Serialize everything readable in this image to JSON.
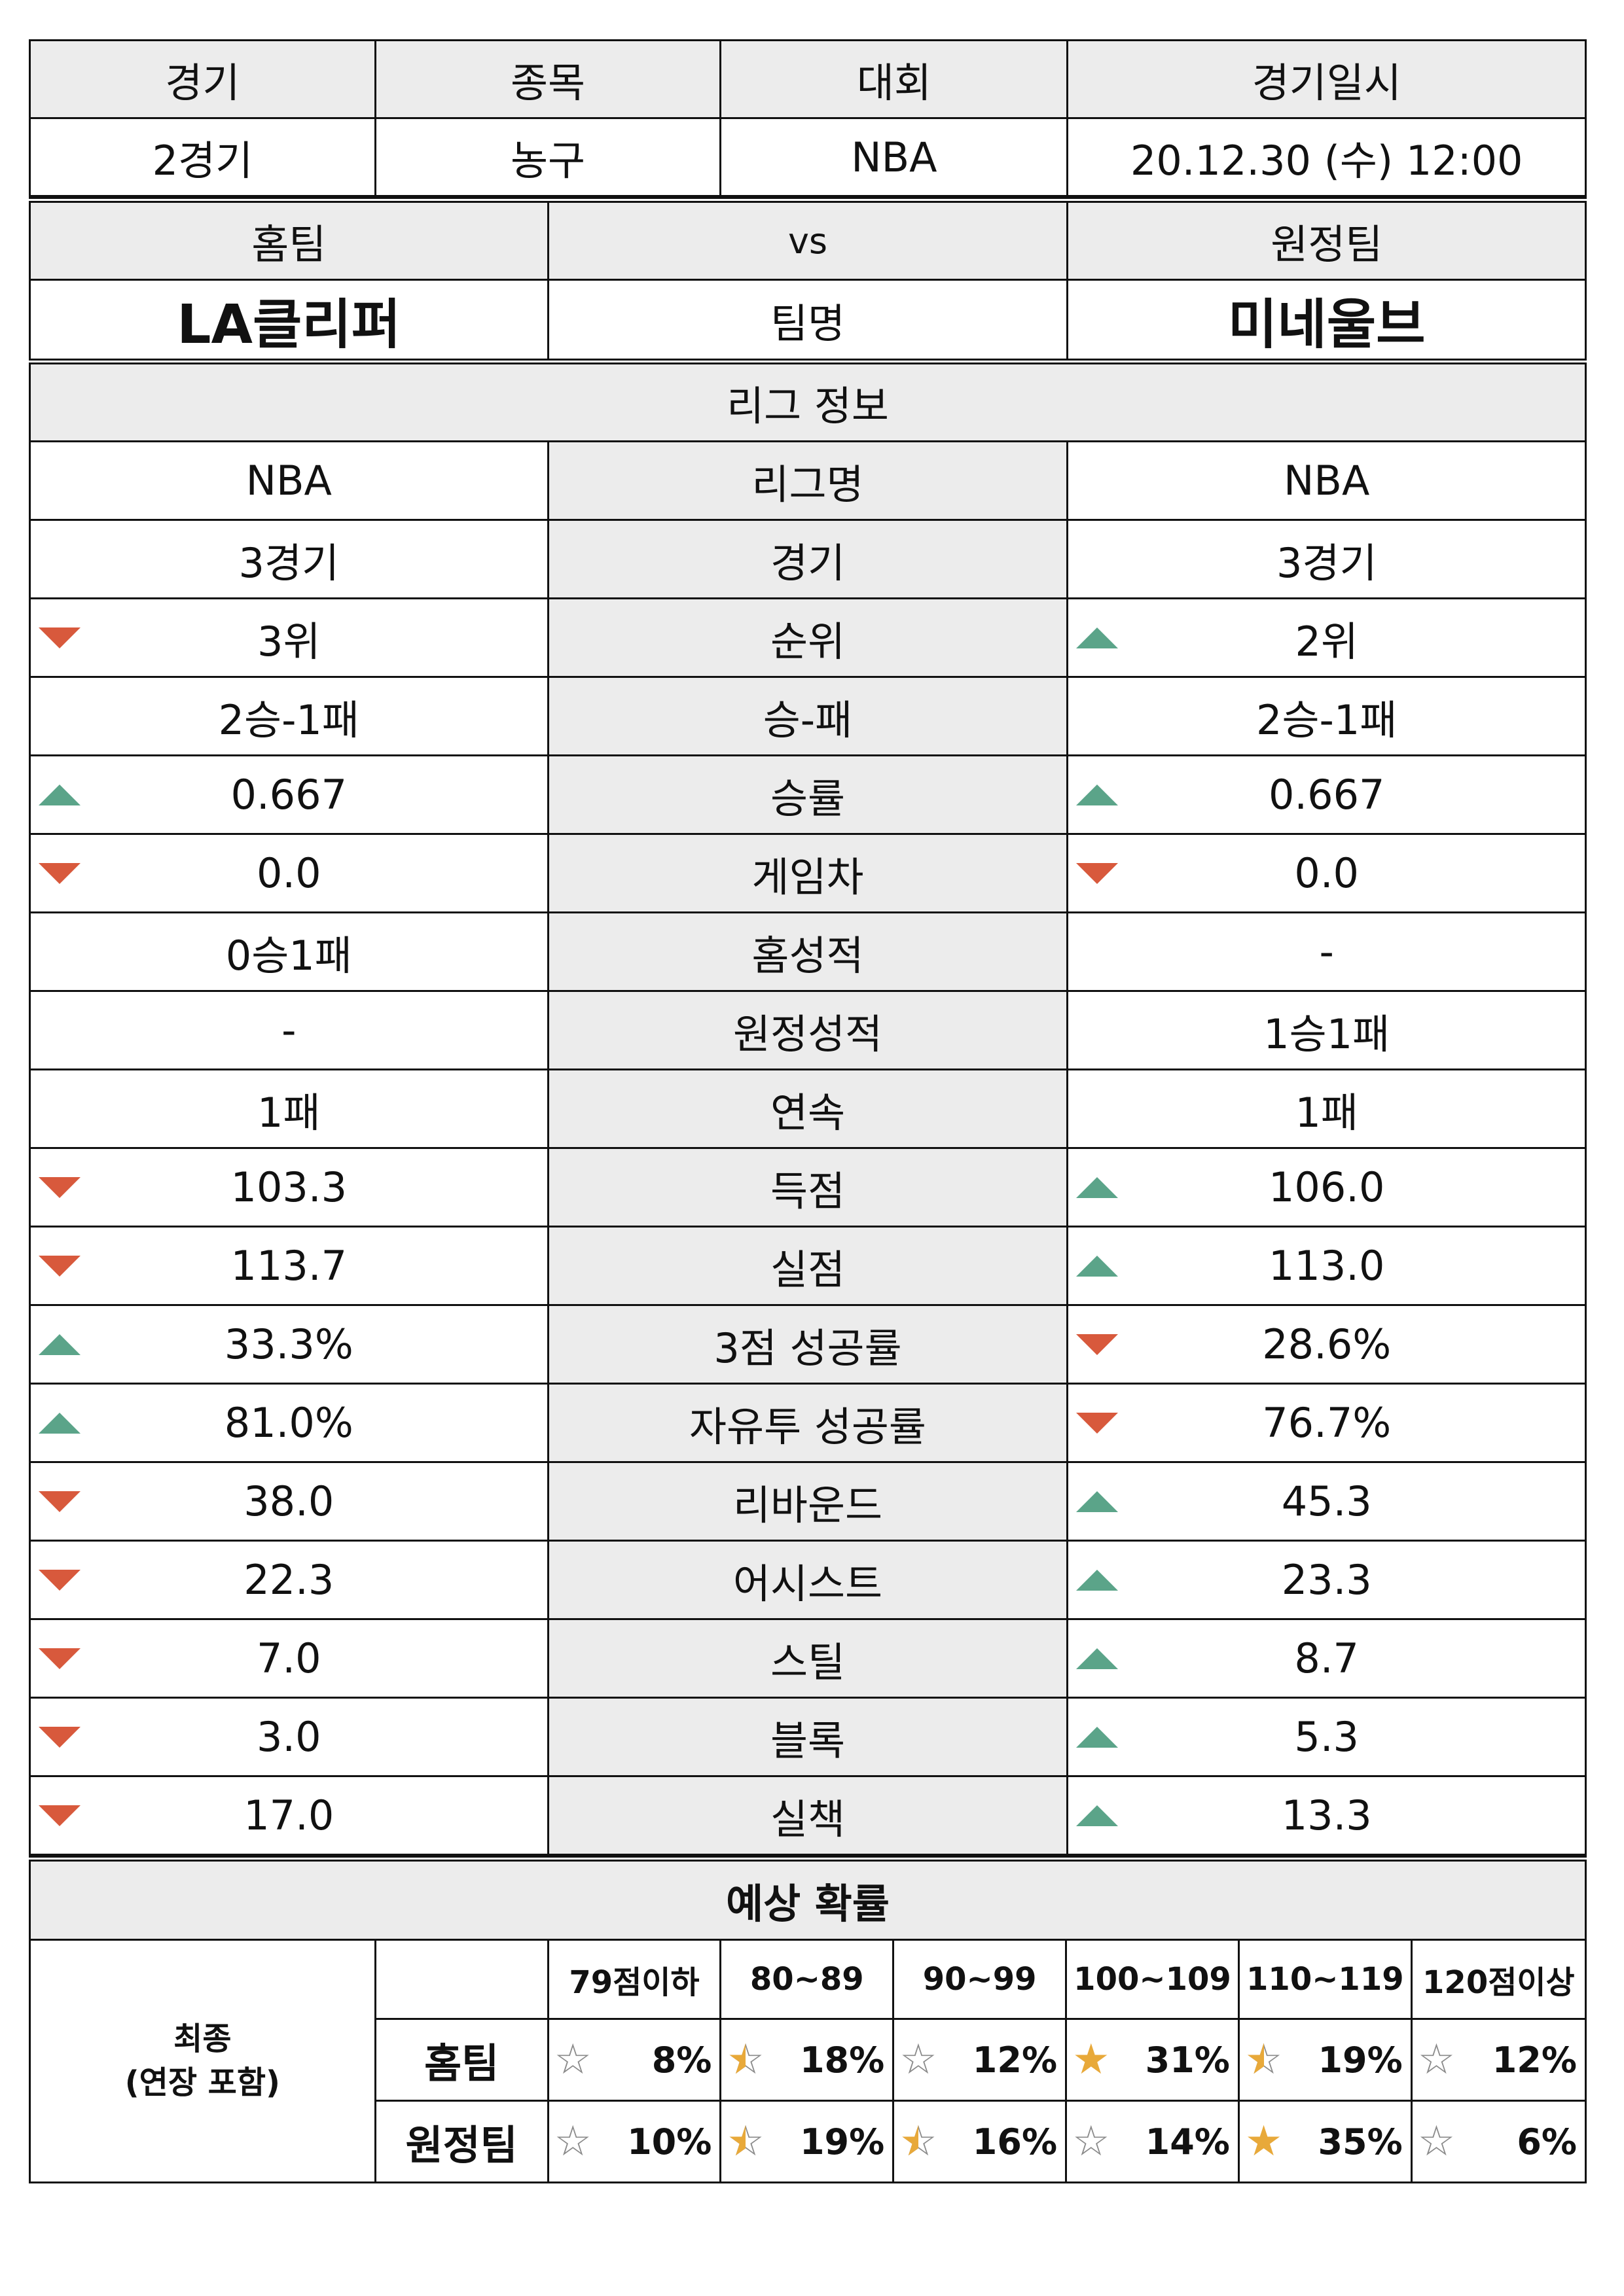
{
  "match_info": {
    "headers": [
      "경기",
      "종목",
      "대회",
      "경기일시"
    ],
    "values": [
      "2경기",
      "농구",
      "NBA",
      "20.12.30 (수) 12:00"
    ]
  },
  "teams": {
    "home_label": "홈팀",
    "vs_label": "vs",
    "away_label": "원정팀",
    "home_name": "LA클리퍼",
    "name_label": "팀명",
    "away_name": "미네울브"
  },
  "league_section_title": "리그 정보",
  "stats": [
    {
      "label": "리그명",
      "home": "NBA",
      "away": "NBA",
      "home_arrow": "",
      "away_arrow": ""
    },
    {
      "label": "경기",
      "home": "3경기",
      "away": "3경기",
      "home_arrow": "",
      "away_arrow": ""
    },
    {
      "label": "순위",
      "home": "3위",
      "away": "2위",
      "home_arrow": "down",
      "away_arrow": "up"
    },
    {
      "label": "승-패",
      "home": "2승-1패",
      "away": "2승-1패",
      "home_arrow": "",
      "away_arrow": ""
    },
    {
      "label": "승률",
      "home": "0.667",
      "away": "0.667",
      "home_arrow": "up",
      "away_arrow": "up"
    },
    {
      "label": "게임차",
      "home": "0.0",
      "away": "0.0",
      "home_arrow": "down",
      "away_arrow": "down"
    },
    {
      "label": "홈성적",
      "home": "0승1패",
      "away": "-",
      "home_arrow": "",
      "away_arrow": ""
    },
    {
      "label": "원정성적",
      "home": "-",
      "away": "1승1패",
      "home_arrow": "",
      "away_arrow": ""
    },
    {
      "label": "연속",
      "home": "1패",
      "away": "1패",
      "home_arrow": "",
      "away_arrow": ""
    },
    {
      "label": "득점",
      "home": "103.3",
      "away": "106.0",
      "home_arrow": "down",
      "away_arrow": "up"
    },
    {
      "label": "실점",
      "home": "113.7",
      "away": "113.0",
      "home_arrow": "down",
      "away_arrow": "up"
    },
    {
      "label": "3점 성공률",
      "home": "33.3%",
      "away": "28.6%",
      "home_arrow": "up",
      "away_arrow": "down"
    },
    {
      "label": "자유투 성공률",
      "home": "81.0%",
      "away": "76.7%",
      "home_arrow": "up",
      "away_arrow": "down"
    },
    {
      "label": "리바운드",
      "home": "38.0",
      "away": "45.3",
      "home_arrow": "down",
      "away_arrow": "up"
    },
    {
      "label": "어시스트",
      "home": "22.3",
      "away": "23.3",
      "home_arrow": "down",
      "away_arrow": "up"
    },
    {
      "label": "스틸",
      "home": "7.0",
      "away": "8.7",
      "home_arrow": "down",
      "away_arrow": "up"
    },
    {
      "label": "블록",
      "home": "3.0",
      "away": "5.3",
      "home_arrow": "down",
      "away_arrow": "up"
    },
    {
      "label": "실책",
      "home": "17.0",
      "away": "13.3",
      "home_arrow": "down",
      "away_arrow": "up"
    }
  ],
  "prediction": {
    "title": "예상 확률",
    "final_label_line1": "최종",
    "final_label_line2": "(연장 포함)",
    "ranges": [
      "79점이하",
      "80~89",
      "90~99",
      "100~109",
      "110~119",
      "120점이상"
    ],
    "rows": [
      {
        "team": "홈팀",
        "values": [
          "8%",
          "18%",
          "12%",
          "31%",
          "19%",
          "12%"
        ],
        "stars": [
          "empty",
          "half",
          "empty",
          "full",
          "half",
          "empty"
        ]
      },
      {
        "team": "원정팀",
        "values": [
          "10%",
          "19%",
          "16%",
          "14%",
          "35%",
          "6%"
        ],
        "stars": [
          "empty",
          "half",
          "half",
          "empty",
          "full",
          "empty"
        ]
      }
    ]
  },
  "colors": {
    "arrow_up": "#5ba489",
    "arrow_down": "#d8593c",
    "star_full": "#e8a93a",
    "header_bg": "#ececec"
  }
}
